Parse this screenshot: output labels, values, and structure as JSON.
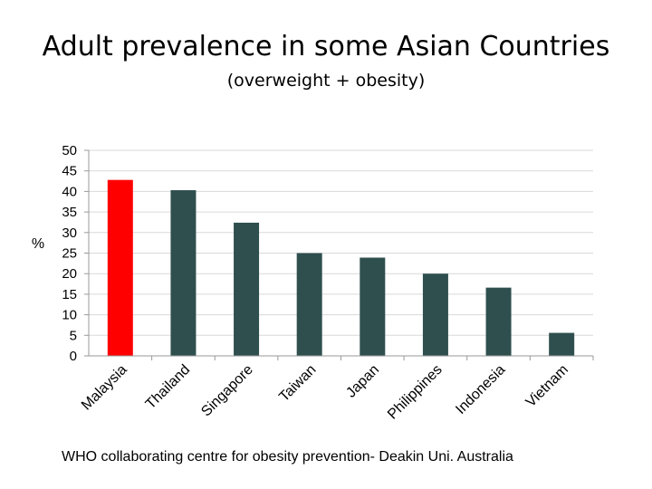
{
  "slide": {
    "title": "Adult prevalence in some Asian Countries",
    "subtitle": "(overweight + obesity)",
    "source": "WHO collaborating centre for obesity prevention- Deakin Uni. Australia"
  },
  "chart_data": {
    "type": "bar",
    "categories": [
      "Malaysia",
      "Thailand",
      "Singapore",
      "Taiwan",
      "Japan",
      "Philippines",
      "Indonesia",
      "Vietnam"
    ],
    "values": [
      42.8,
      40.3,
      32.4,
      25.0,
      23.9,
      20.0,
      16.6,
      5.6
    ],
    "ylabel": "%",
    "ylim": [
      0,
      50
    ],
    "yticks": [
      0,
      5,
      10,
      15,
      20,
      25,
      30,
      35,
      40,
      45,
      50
    ],
    "grid": true,
    "legend": "none",
    "colors": {
      "default": "#2f4f4f",
      "highlight": "#ff0000",
      "highlight_category": "Malaysia",
      "grid": "#d9d9d9",
      "axis": "#999999"
    }
  }
}
